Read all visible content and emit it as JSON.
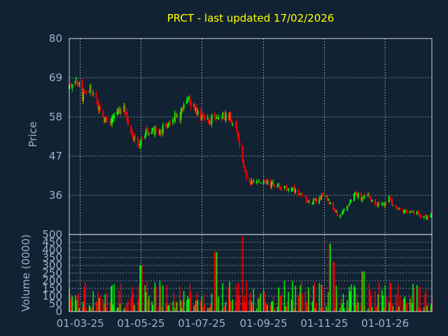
{
  "chart_data": {
    "type": "candlestick",
    "title": "PRCT - last updated 17/02/2026",
    "colors": {
      "background": "#112233",
      "up": "#00ff00",
      "down": "#ff0000",
      "title": "#ffff00",
      "tick": "#99b3cc",
      "grid": "#ffffff"
    },
    "x_tick_labels": [
      "01-03-25",
      "01-05-25",
      "01-07-25",
      "01-09-25",
      "01-11-25",
      "01-01-26"
    ],
    "x_range": [
      "2025-02-18",
      "2026-02-17"
    ],
    "price_panel": {
      "ylabel": "Price",
      "ylim": [
        25,
        80
      ],
      "yticks": [
        36,
        47,
        58,
        69,
        80
      ]
    },
    "volume_panel": {
      "ylabel": "Volume (0000)",
      "ylim": [
        0,
        500
      ],
      "yticks": [
        0,
        50,
        100,
        150,
        200,
        250,
        300,
        350,
        400,
        450,
        500
      ]
    },
    "price_anchors": [
      [
        "2025-02-18",
        66
      ],
      [
        "2025-02-25",
        68
      ],
      [
        "2025-03-03",
        64
      ],
      [
        "2025-03-10",
        66
      ],
      [
        "2025-03-17",
        62
      ],
      [
        "2025-03-24",
        57
      ],
      [
        "2025-03-31",
        56
      ],
      [
        "2025-04-07",
        59
      ],
      [
        "2025-04-14",
        61
      ],
      [
        "2025-04-21",
        53
      ],
      [
        "2025-04-28",
        50
      ],
      [
        "2025-05-05",
        53
      ],
      [
        "2025-05-12",
        55
      ],
      [
        "2025-05-19",
        53
      ],
      [
        "2025-05-26",
        56
      ],
      [
        "2025-06-02",
        58
      ],
      [
        "2025-06-09",
        58
      ],
      [
        "2025-06-16",
        64
      ],
      [
        "2025-06-23",
        61
      ],
      [
        "2025-06-30",
        58
      ],
      [
        "2025-07-07",
        57
      ],
      [
        "2025-07-14",
        58
      ],
      [
        "2025-07-21",
        58
      ],
      [
        "2025-07-28",
        58
      ],
      [
        "2025-08-04",
        56
      ],
      [
        "2025-08-11",
        45
      ],
      [
        "2025-08-18",
        39
      ],
      [
        "2025-08-25",
        40
      ],
      [
        "2025-09-01",
        40
      ],
      [
        "2025-09-08",
        39
      ],
      [
        "2025-09-15",
        39
      ],
      [
        "2025-09-22",
        38
      ],
      [
        "2025-09-29",
        38
      ],
      [
        "2025-10-06",
        36
      ],
      [
        "2025-10-13",
        35
      ],
      [
        "2025-10-20",
        34
      ],
      [
        "2025-10-27",
        35
      ],
      [
        "2025-11-03",
        36
      ],
      [
        "2025-11-10",
        32
      ],
      [
        "2025-11-17",
        30
      ],
      [
        "2025-11-24",
        33
      ],
      [
        "2025-12-01",
        37
      ],
      [
        "2025-12-08",
        35
      ],
      [
        "2025-12-15",
        36
      ],
      [
        "2025-12-22",
        34
      ],
      [
        "2025-12-29",
        33
      ],
      [
        "2026-01-05",
        35
      ],
      [
        "2026-01-12",
        32
      ],
      [
        "2026-01-19",
        32
      ],
      [
        "2026-01-26",
        31
      ],
      [
        "2026-02-02",
        31
      ],
      [
        "2026-02-09",
        30
      ],
      [
        "2026-02-17",
        30
      ]
    ],
    "volume_spikes": [
      [
        "2025-05-01",
        300
      ],
      [
        "2025-07-15",
        385
      ],
      [
        "2025-08-10",
        490
      ],
      [
        "2025-11-07",
        440
      ],
      [
        "2025-11-10",
        320
      ],
      [
        "2025-12-10",
        260
      ]
    ],
    "volume_typical": [
      20,
      200
    ]
  }
}
